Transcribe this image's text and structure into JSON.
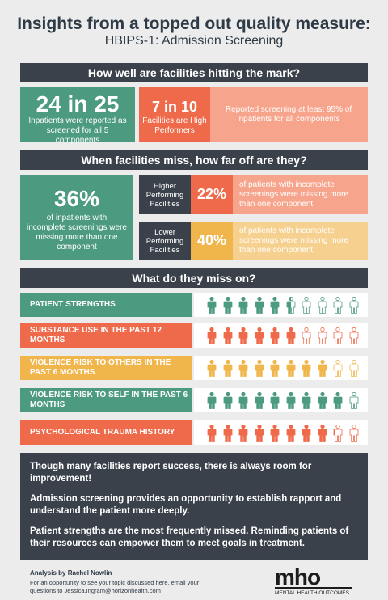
{
  "header": {
    "title": "Insights from a topped out quality measure:",
    "subtitle": "HBIPS-1: Admission Screening"
  },
  "section1": {
    "heading": "How well are facilities hitting the mark?",
    "stat1_big": "24 in 25",
    "stat1_text": "Inpatients were reported as screened for all 5 components",
    "stat2_big": "7 in 10",
    "stat2_text": "Facilities are High Performers",
    "stat2_detail": "Reported screening at least 95% of inpatients for all components"
  },
  "section2": {
    "heading": "When facilities miss, how far off are they?",
    "overall_big": "36%",
    "overall_text": "of inpatients with incomplete screenings were missing more than one component",
    "higher_label": "Higher Performing Facilities",
    "higher_pct": "22%",
    "higher_text": "of patients with incomplete screenings were missing more than one component.",
    "lower_label": "Lower Performing Facilities",
    "lower_pct": "40%",
    "lower_text": "of patients with incomplete screenings were missing more than one component."
  },
  "section3": {
    "heading": "What do they miss on?",
    "rows": [
      {
        "label": "PATIENT STRENGTHS",
        "color": "#4c9a80",
        "filled_fraction": 0.55
      },
      {
        "label": "SUBSTANCE USE IN THE PAST 12 MONTHS",
        "color": "#ef6a4a",
        "filled_fraction": 0.6
      },
      {
        "label": "VIOLENCE RISK TO OTHERS IN THE PAST 6 MONTHS",
        "color": "#f0b64c",
        "filled_fraction": 0.8
      },
      {
        "label": "VIOLENCE RISK TO SELF IN THE PAST 6 MONTHS",
        "color": "#4c9a80",
        "filled_fraction": 0.9
      },
      {
        "label": "PSYCHOLOGICAL TRAUMA HISTORY",
        "color": "#ef6a4a",
        "filled_fraction": 0.82
      }
    ]
  },
  "summary": {
    "p1": "Though many facilities report success, there is always room for improvement!",
    "p2": "Admission screening provides an opportunity to establish rapport and understand the patient more deeply.",
    "p3": "Patient strengths are the most frequently missed. Reminding patients of their resources can empower them to meet goals in treatment."
  },
  "footer": {
    "analysis": "Analysis by Rachel Nowlin",
    "note": "For an opportunity to see your topic discussed here, email your questions to Jessica.Ingram@horizonhealth.com",
    "logo": "mho",
    "logo_sub": "MENTAL HEALTH OUTCOMES"
  }
}
